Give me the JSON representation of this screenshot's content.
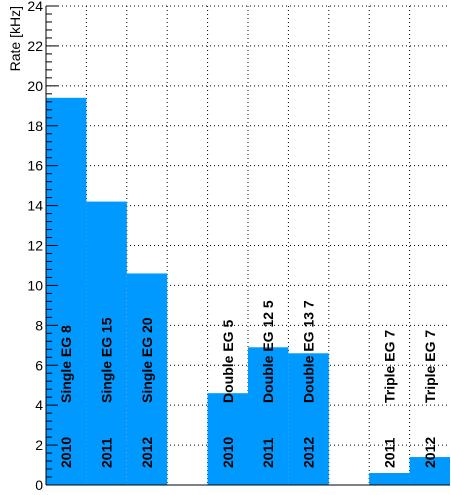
{
  "chart_data": {
    "type": "bar",
    "title": "",
    "xlabel": "",
    "ylabel": "Rate [kHz]",
    "ylim": [
      0,
      24
    ],
    "yticks": [
      0,
      2,
      4,
      6,
      8,
      10,
      12,
      14,
      16,
      18,
      20,
      22,
      24
    ],
    "grid": true,
    "bar_color": "#0099ff",
    "bars": [
      {
        "name": "Single EG 8",
        "year": "2010",
        "value": 19.4
      },
      {
        "name": "Single EG 15",
        "year": "2011",
        "value": 14.2
      },
      {
        "name": "Single EG 20",
        "year": "2012",
        "value": 10.6
      },
      {
        "name": "",
        "year": "",
        "value": 0
      },
      {
        "name": "Double EG 5",
        "year": "2010",
        "value": 4.6
      },
      {
        "name": "Double EG 12 5",
        "year": "2011",
        "value": 6.9
      },
      {
        "name": "Double EG 13 7",
        "year": "2012",
        "value": 6.6
      },
      {
        "name": "",
        "year": "",
        "value": 0
      },
      {
        "name": "Triple EG 7",
        "year": "2011",
        "value": 0.6
      },
      {
        "name": "Triple EG 7",
        "year": "2012",
        "value": 1.4
      }
    ]
  }
}
